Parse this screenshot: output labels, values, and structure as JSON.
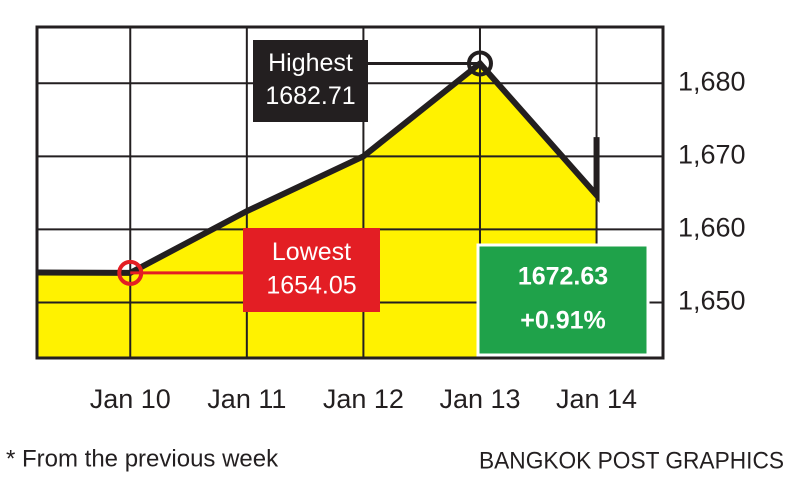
{
  "chart_data": {
    "type": "line",
    "x": [
      9.2,
      10,
      11,
      12,
      13,
      14,
      14
    ],
    "values": [
      1654.1,
      1654.05,
      1662.5,
      1670,
      1682.71,
      1664.7,
      1672.63
    ],
    "color": "#231f20",
    "fill_color": "#fff200",
    "xlim": [
      9.2,
      14.57
    ],
    "ylim": [
      1642.4,
      1687.7
    ],
    "xticks": [
      {
        "value": 10,
        "label": "Jan 10"
      },
      {
        "value": 11,
        "label": "Jan 11"
      },
      {
        "value": 12,
        "label": "Jan 12"
      },
      {
        "value": 13,
        "label": "Jan 13"
      },
      {
        "value": 14,
        "label": "Jan 14"
      }
    ],
    "yticks": [
      {
        "value": 1650,
        "label": "1,650"
      },
      {
        "value": 1660,
        "label": "1,660"
      },
      {
        "value": 1670,
        "label": "1,670"
      },
      {
        "value": 1680,
        "label": "1,680"
      }
    ],
    "grid": true,
    "annotations": [
      {
        "text": [
          "Highest",
          "1682.71"
        ],
        "color": "#231f20"
      },
      {
        "text": [
          "Lowest",
          "1654.05"
        ],
        "color": "#e31e24"
      },
      {
        "text": [
          "1672.63",
          "+0.91%"
        ],
        "color": "#1fa24a"
      }
    ],
    "footnote": "* From the previous week",
    "source": "BANGKOK POST GRAPHICS"
  }
}
